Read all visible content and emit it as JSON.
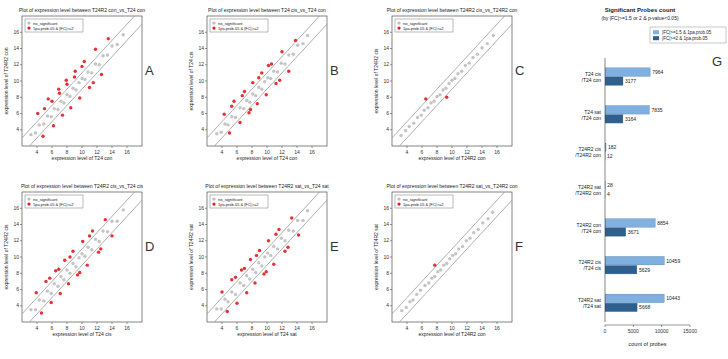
{
  "chart_data": [
    {
      "type": "scatter",
      "panel_label": "A",
      "title": "Plot of expression level between T24R2 con_vs_T24 con",
      "xlabel": "expression level of T24 con",
      "ylabel": "expression level of T24R2 con",
      "xlim": [
        2,
        18
      ],
      "ylim": [
        2,
        18
      ],
      "xticks": [
        4,
        6,
        8,
        10,
        12,
        14,
        16
      ],
      "yticks": [
        4,
        6,
        8,
        10,
        12,
        14,
        16
      ],
      "grid": false,
      "legend": "topleft",
      "fc_lines": [
        -1,
        1
      ],
      "series": [
        {
          "name": "no_significant",
          "color": "#bebebe",
          "x": [
            3.2,
            3.8,
            4.3,
            4.9,
            5.4,
            5.9,
            6.3,
            6.8,
            7.2,
            7.6,
            8.0,
            8.4,
            8.8,
            9.2,
            9.6,
            10.0,
            10.4,
            10.8,
            11.3,
            11.8,
            12.3,
            12.8,
            13.4,
            14.0,
            14.7,
            15.5
          ],
          "values": [
            3.4,
            3.6,
            4.6,
            4.7,
            5.7,
            5.6,
            6.6,
            6.5,
            7.5,
            7.3,
            8.3,
            8.1,
            9.1,
            8.9,
            9.8,
            10.3,
            10.2,
            11.1,
            11.0,
            12.1,
            12.0,
            13.1,
            13.2,
            14.3,
            14.5,
            15.7
          ]
        },
        {
          "name": "1pa.prob.05 & |FC|>=2",
          "color": "#e41a1c",
          "x": [
            4.1,
            4.8,
            5.5,
            6.2,
            6.9,
            7.4,
            7.9,
            8.5,
            9.1,
            9.7,
            10.3,
            11.0,
            11.8,
            12.6,
            13.5,
            5.0,
            6.0,
            7.0,
            8.0,
            9.0,
            10.0,
            11.5
          ],
          "values": [
            6.0,
            3.2,
            7.8,
            4.5,
            9.0,
            5.8,
            10.1,
            6.7,
            11.2,
            7.9,
            12.4,
            9.2,
            13.9,
            10.8,
            15.2,
            6.6,
            7.5,
            8.5,
            9.6,
            10.5,
            11.8,
            9.8
          ]
        }
      ]
    },
    {
      "type": "scatter",
      "panel_label": "B",
      "title": "Plot of expression level between T24 cis_vs_T24 con",
      "xlabel": "expression level of T24 con",
      "ylabel": "expression level of T24 cis",
      "xlim": [
        2,
        18
      ],
      "ylim": [
        2,
        18
      ],
      "xticks": [
        4,
        6,
        8,
        10,
        12,
        14,
        16
      ],
      "yticks": [
        4,
        6,
        8,
        10,
        12,
        14,
        16
      ],
      "grid": false,
      "legend": "topleft",
      "fc_lines": [
        -1,
        1
      ],
      "series": [
        {
          "name": "no_significant",
          "color": "#bebebe",
          "x": [
            3.3,
            3.9,
            4.4,
            4.8,
            5.3,
            5.8,
            6.4,
            6.9,
            7.3,
            7.7,
            8.1,
            8.5,
            8.9,
            9.3,
            9.7,
            10.1,
            10.5,
            10.9,
            11.4,
            11.9,
            12.4,
            12.9,
            13.5,
            14.1,
            14.8,
            15.4
          ],
          "values": [
            3.5,
            3.7,
            4.7,
            4.6,
            5.6,
            5.5,
            6.7,
            6.6,
            7.6,
            7.4,
            8.4,
            8.2,
            9.2,
            9.0,
            9.9,
            10.4,
            10.3,
            11.2,
            11.1,
            12.2,
            12.1,
            13.2,
            13.3,
            14.4,
            14.6,
            15.6
          ]
        },
        {
          "name": "1pa.prob.05 & |FC|>=2",
          "color": "#e41a1c",
          "x": [
            4.3,
            5.0,
            5.6,
            6.4,
            7.0,
            7.6,
            8.1,
            8.7,
            9.3,
            9.9,
            10.6,
            11.2,
            12.0,
            12.9,
            13.8,
            5.3,
            6.7,
            7.8,
            8.9,
            10.2,
            11.7
          ],
          "values": [
            5.9,
            3.6,
            7.5,
            4.9,
            8.7,
            6.1,
            9.8,
            7.2,
            11.0,
            8.3,
            12.1,
            9.7,
            13.6,
            11.2,
            15.0,
            6.9,
            8.2,
            6.5,
            10.4,
            11.9,
            10.1
          ]
        }
      ]
    },
    {
      "type": "scatter",
      "panel_label": "C",
      "title": "Plot of expression level between T24R2 cis_vs_T24R2 con",
      "xlabel": "expression level of T24R2 con",
      "ylabel": "expression level of T24R2 cis",
      "xlim": [
        2,
        18
      ],
      "ylim": [
        2,
        18
      ],
      "xticks": [
        4,
        6,
        8,
        10,
        12,
        14,
        16
      ],
      "yticks": [
        4,
        6,
        8,
        10,
        12,
        14,
        16
      ],
      "grid": false,
      "legend": "topleft",
      "fc_lines": [
        -1,
        1
      ],
      "series": [
        {
          "name": "no_significant",
          "color": "#bebebe",
          "x": [
            3.2,
            3.8,
            4.3,
            4.9,
            5.4,
            5.9,
            6.3,
            6.8,
            7.2,
            7.6,
            8.0,
            8.4,
            8.8,
            9.2,
            9.6,
            10.0,
            10.4,
            10.8,
            11.3,
            11.8,
            12.3,
            12.8,
            13.4,
            14.0,
            14.7,
            15.5
          ],
          "values": [
            3.3,
            3.9,
            4.4,
            4.8,
            5.5,
            5.8,
            6.4,
            6.7,
            7.3,
            7.5,
            8.1,
            8.3,
            8.9,
            9.1,
            9.7,
            10.1,
            10.3,
            10.9,
            11.2,
            11.9,
            12.2,
            12.9,
            13.3,
            14.1,
            14.6,
            15.6
          ]
        },
        {
          "name": "1pa.prob.05 & |FC|>=2",
          "color": "#e41a1c",
          "x": [
            6.5,
            9.3
          ],
          "values": [
            7.8,
            8.0
          ]
        }
      ]
    },
    {
      "type": "scatter",
      "panel_label": "D",
      "title": "Plot of expression level between T24R2 cis_vs_T24 cis",
      "xlabel": "expression level of T24 cis",
      "ylabel": "expression level of T24R2 cis",
      "xlim": [
        2,
        18
      ],
      "ylim": [
        2,
        18
      ],
      "xticks": [
        4,
        6,
        8,
        10,
        12,
        14,
        16
      ],
      "yticks": [
        4,
        6,
        8,
        10,
        12,
        14,
        16
      ],
      "grid": false,
      "legend": "topleft",
      "fc_lines": [
        -1,
        1
      ],
      "series": [
        {
          "name": "no_significant",
          "color": "#bebebe",
          "x": [
            3.2,
            3.8,
            4.3,
            4.9,
            5.4,
            5.9,
            6.3,
            6.8,
            7.2,
            7.6,
            8.0,
            8.4,
            8.8,
            9.2,
            9.6,
            10.0,
            10.4,
            10.8,
            11.3,
            11.8,
            12.3,
            12.8,
            13.4,
            14.0,
            14.7,
            15.5
          ],
          "values": [
            3.5,
            3.5,
            4.7,
            4.6,
            5.8,
            5.5,
            6.7,
            6.4,
            7.6,
            7.2,
            8.4,
            8.0,
            9.2,
            8.8,
            9.9,
            10.4,
            10.1,
            11.2,
            10.9,
            12.2,
            11.9,
            13.2,
            13.1,
            14.4,
            14.4,
            15.8
          ]
        },
        {
          "name": "1pa.prob.05 & |FC|>=2",
          "color": "#e41a1c",
          "x": [
            3.9,
            4.6,
            5.2,
            5.9,
            6.5,
            7.1,
            7.7,
            8.2,
            8.8,
            9.4,
            10.1,
            10.7,
            11.4,
            12.2,
            13.1,
            14.0,
            5.7,
            6.9,
            8.4,
            9.7,
            11.0,
            12.5
          ],
          "values": [
            5.6,
            3.1,
            7.0,
            4.4,
            8.3,
            5.5,
            9.6,
            6.7,
            10.7,
            7.8,
            11.9,
            9.0,
            13.2,
            10.6,
            14.6,
            12.6,
            7.4,
            8.5,
            10.0,
            8.1,
            12.6,
            11.0
          ]
        }
      ]
    },
    {
      "type": "scatter",
      "panel_label": "E",
      "title": "Plot of expression level between T24R2 sat_vs_T24 sat",
      "xlabel": "expression level of T24 sat",
      "ylabel": "expression level of T24R2 sat",
      "xlim": [
        2,
        18
      ],
      "ylim": [
        2,
        18
      ],
      "xticks": [
        4,
        6,
        8,
        10,
        12,
        14,
        16
      ],
      "yticks": [
        4,
        6,
        8,
        10,
        12,
        14,
        16
      ],
      "grid": false,
      "legend": "topleft",
      "fc_lines": [
        -1,
        1
      ],
      "series": [
        {
          "name": "no_significant",
          "color": "#bebebe",
          "x": [
            3.3,
            3.9,
            4.4,
            4.8,
            5.3,
            5.8,
            6.4,
            6.9,
            7.3,
            7.7,
            8.1,
            8.5,
            8.9,
            9.3,
            9.7,
            10.1,
            10.5,
            10.9,
            11.4,
            11.9,
            12.4,
            12.9,
            13.5,
            14.1,
            14.8,
            15.4
          ],
          "values": [
            3.6,
            3.6,
            4.8,
            4.5,
            5.7,
            5.4,
            6.8,
            6.5,
            7.7,
            7.3,
            8.5,
            8.1,
            9.3,
            8.9,
            10.0,
            10.5,
            10.2,
            11.3,
            11.0,
            12.3,
            12.0,
            13.3,
            13.2,
            14.5,
            14.5,
            15.7
          ]
        },
        {
          "name": "1pa.prob.05 & |FC|>=2",
          "color": "#e41a1c",
          "x": [
            4.0,
            4.7,
            5.3,
            6.0,
            6.6,
            7.3,
            7.8,
            8.4,
            9.0,
            9.6,
            10.2,
            10.9,
            11.6,
            12.4,
            13.3,
            14.2,
            5.8,
            7.0,
            8.6,
            9.9,
            11.2,
            12.8
          ],
          "values": [
            5.7,
            3.3,
            7.2,
            4.3,
            8.4,
            5.6,
            9.7,
            6.8,
            10.8,
            7.9,
            12.0,
            9.1,
            13.4,
            10.7,
            14.8,
            12.7,
            7.5,
            8.6,
            10.2,
            8.2,
            12.8,
            11.2
          ]
        }
      ]
    },
    {
      "type": "scatter",
      "panel_label": "F",
      "title": "Plot of expression level between T24R2 sat_vs_T24R2 con",
      "xlabel": "expression level of T24R2 con",
      "ylabel": "expression level of T24R2 sat",
      "xlim": [
        2,
        18
      ],
      "ylim": [
        2,
        18
      ],
      "xticks": [
        4,
        6,
        8,
        10,
        12,
        14,
        16
      ],
      "yticks": [
        4,
        6,
        8,
        10,
        12,
        14,
        16
      ],
      "grid": false,
      "legend": "topleft",
      "fc_lines": [
        -1,
        1
      ],
      "series": [
        {
          "name": "no_significant",
          "color": "#bebebe",
          "x": [
            3.3,
            3.9,
            4.4,
            4.8,
            5.3,
            5.8,
            6.4,
            6.9,
            7.3,
            7.7,
            8.1,
            8.5,
            8.9,
            9.3,
            9.7,
            10.1,
            10.5,
            10.9,
            11.4,
            11.9,
            12.4,
            12.9,
            13.5,
            14.1,
            14.8,
            15.4
          ],
          "values": [
            3.4,
            3.8,
            4.5,
            4.7,
            5.4,
            5.9,
            6.5,
            6.8,
            7.4,
            7.6,
            8.2,
            8.4,
            9.0,
            9.2,
            9.8,
            10.2,
            10.4,
            11.0,
            11.3,
            12.0,
            12.3,
            13.0,
            13.4,
            14.2,
            14.7,
            15.5
          ]
        },
        {
          "name": "1pa.prob.05 & |FC|>=2",
          "color": "#e41a1c",
          "x": [
            7.7
          ],
          "values": [
            9.0
          ]
        }
      ]
    },
    {
      "type": "bar",
      "panel_label": "G",
      "orientation": "horizontal",
      "title": "Significant Probes count",
      "subtitle": "(by |FC|>=1.5 or 2 & p-value<0.05)",
      "xlabel": "count of probes",
      "categories": [
        "T24 cis /T24 con",
        "T24 sat /T24 con",
        "T24R2 cis /T24R2 con",
        "T24R2 sat /T24R2 con",
        "T24R2 con /T24 con",
        "T24R2 cis /T24 cis",
        "T24R2 sat /T24 sat"
      ],
      "series": [
        {
          "name": "|FC|>=1.5 & 1pa.prob.05",
          "color": "#7fb0e0",
          "values": [
            7964,
            7835,
            182,
            28,
            8854,
            10459,
            10443
          ]
        },
        {
          "name": "|FC|>=2 & 1pa.prob.05",
          "color": "#2f5f8c",
          "values": [
            3177,
            3164,
            12,
            4,
            3671,
            5629,
            5668
          ]
        }
      ],
      "xlim": [
        0,
        15000
      ],
      "xticks": [
        0,
        5000,
        10000,
        15000
      ],
      "grid": false,
      "legend": "topright",
      "data_labels": true
    }
  ]
}
